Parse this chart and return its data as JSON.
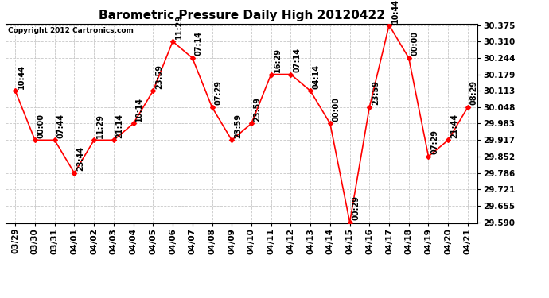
{
  "title": "Barometric Pressure Daily High 20120422",
  "copyright": "Copyright 2012 Cartronics.com",
  "x_labels": [
    "03/29",
    "03/30",
    "03/31",
    "04/01",
    "04/02",
    "04/03",
    "04/04",
    "04/05",
    "04/06",
    "04/07",
    "04/08",
    "04/09",
    "04/10",
    "04/11",
    "04/12",
    "04/13",
    "04/14",
    "04/15",
    "04/16",
    "04/17",
    "04/18",
    "04/19",
    "04/20",
    "04/21"
  ],
  "y_values": [
    30.113,
    29.917,
    29.917,
    29.786,
    29.917,
    29.917,
    29.983,
    30.113,
    30.31,
    30.244,
    30.048,
    29.917,
    29.983,
    30.179,
    30.179,
    30.113,
    29.983,
    29.59,
    30.048,
    30.375,
    30.244,
    29.852,
    29.917,
    30.048
  ],
  "point_labels": [
    "10:44",
    "00:00",
    "07:44",
    "23:44",
    "11:29",
    "21:14",
    "10:14",
    "23:59",
    "11:29",
    "07:14",
    "07:29",
    "23:59",
    "23:59",
    "16:29",
    "07:14",
    "04:14",
    "00:00",
    "00:29",
    "23:59",
    "10:44",
    "00:00",
    "07:29",
    "21:44",
    "08:29"
  ],
  "y_min": 29.59,
  "y_max": 30.375,
  "y_ticks": [
    29.59,
    29.655,
    29.721,
    29.786,
    29.852,
    29.917,
    29.983,
    30.048,
    30.113,
    30.179,
    30.244,
    30.31,
    30.375
  ],
  "line_color": "red",
  "marker_color": "red",
  "marker_size": 3,
  "bg_color": "white",
  "grid_color": "#c8c8c8",
  "title_fontsize": 11,
  "tick_fontsize": 7.5,
  "annotation_fontsize": 7,
  "copyright_fontsize": 6.5,
  "figwidth": 6.9,
  "figheight": 3.75,
  "dpi": 100
}
